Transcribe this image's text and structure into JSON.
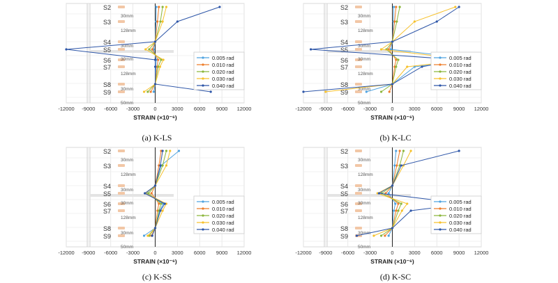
{
  "colors": {
    "0.005 rad": "#4fa3e0",
    "0.010 rad": "#ee7d2a",
    "0.020 rad": "#8cb63c",
    "0.030 rad": "#f6c12c",
    "0.040 rad": "#2e56a8"
  },
  "chart_data": [
    {
      "type": "line",
      "caption": "(a)  K-LS",
      "xlabel": "STRAIN (×10⁻⁶)",
      "xlim": [
        -12000,
        12000
      ],
      "xticks": [
        "-12000",
        "-9000",
        "-6000",
        "-3000",
        "0",
        "3000",
        "6000",
        "9000",
        "12000"
      ],
      "gauges": [
        "S2",
        "S3",
        "S4",
        "S5",
        "S6",
        "S7",
        "S8",
        "S9"
      ],
      "spacing_labels": [
        "30mm",
        "128mm",
        "30mm",
        "30mm",
        "128mm",
        "30mm",
        "50mm"
      ],
      "legend": [
        "0.005 rad",
        "0.010 rad",
        "0.020 rad",
        "0.030 rad",
        "0.040 rad"
      ],
      "series": [
        {
          "name": "0.005 rad",
          "x": [
            150,
            110,
            0,
            -200,
            150,
            100,
            0,
            -200
          ]
        },
        {
          "name": "0.010 rad",
          "x": [
            500,
            300,
            0,
            -400,
            400,
            250,
            0,
            -600
          ]
        },
        {
          "name": "0.020 rad",
          "x": [
            1000,
            700,
            0,
            -800,
            800,
            400,
            0,
            -1000
          ]
        },
        {
          "name": "0.030 rad",
          "x": [
            1500,
            1000,
            0,
            -1300,
            1100,
            650,
            0,
            -1500
          ]
        },
        {
          "name": "0.040 rad",
          "x": [
            8700,
            3000,
            0,
            -12000,
            0,
            0,
            0,
            7500
          ]
        }
      ]
    },
    {
      "type": "line",
      "caption": "(b)  K-LC",
      "xlabel": "STRAIN (×10⁻⁶)",
      "xlim": [
        -12000,
        12000
      ],
      "xticks": [
        "-12000",
        "-9000",
        "-6000",
        "-3000",
        "0",
        "3000",
        "6000",
        "9000",
        "12000"
      ],
      "gauges": [
        "S2",
        "S3",
        "S4",
        "S5",
        "S6",
        "S7",
        "S8",
        "S9"
      ],
      "spacing_labels": [
        "30mm",
        "128mm",
        "30mm",
        "30mm",
        "128mm",
        "30mm",
        "50mm"
      ],
      "legend": [
        "0.005 rad",
        "0.010 rad",
        "0.020 rad",
        "0.030 rad",
        "0.040 rad"
      ],
      "series": [
        {
          "name": "0.005 rad",
          "x": [
            200,
            150,
            0,
            -200,
            11800,
            3000,
            0,
            -3500
          ]
        },
        {
          "name": "0.010 rad",
          "x": [
            500,
            300,
            0,
            -500,
            500,
            300,
            0,
            -400
          ]
        },
        {
          "name": "0.020 rad",
          "x": [
            1000,
            600,
            0,
            -800,
            800,
            500,
            0,
            -1500
          ]
        },
        {
          "name": "0.030 rad",
          "x": [
            8500,
            3000,
            0,
            -1500,
            10300,
            2000,
            0,
            -9000
          ]
        },
        {
          "name": "0.040 rad",
          "x": [
            9000,
            6000,
            0,
            -11000,
            9000,
            4000,
            0,
            -12000
          ]
        }
      ]
    },
    {
      "type": "line",
      "caption": "(c)  K-SS",
      "xlabel": "STRAIN (×10⁻⁶)",
      "xlim": [
        -12000,
        12000
      ],
      "xticks": [
        "-12000",
        "-9000",
        "-6000",
        "-3000",
        "0",
        "3000",
        "6000",
        "9000",
        "12000"
      ],
      "gauges": [
        "S2",
        "S3",
        "S4",
        "S5",
        "S6",
        "S7",
        "S8",
        "S9"
      ],
      "spacing_labels": [
        "30mm",
        "128mm",
        "30mm",
        "30mm",
        "128mm",
        "30mm",
        "50mm"
      ],
      "legend": [
        "0.005 rad",
        "0.010 rad",
        "0.020 rad",
        "0.030 rad",
        "0.040 rad"
      ],
      "series": [
        {
          "name": "0.005 rad",
          "x": [
            3200,
            800,
            0,
            -1200,
            1100,
            600,
            0,
            -1500
          ]
        },
        {
          "name": "0.010 rad",
          "x": [
            800,
            500,
            0,
            -500,
            500,
            300,
            0,
            -500
          ]
        },
        {
          "name": "0.020 rad",
          "x": [
            1500,
            1000,
            0,
            -900,
            800,
            500,
            0,
            -800
          ]
        },
        {
          "name": "0.030 rad",
          "x": [
            2000,
            1500,
            0,
            -1300,
            1500,
            1000,
            0,
            -1000
          ]
        },
        {
          "name": "0.040 rad",
          "x": [
            1000,
            700,
            0,
            -1400,
            1300,
            700,
            0,
            -400
          ]
        }
      ]
    },
    {
      "type": "line",
      "caption": "(d)  K-SC",
      "xlabel": "STRAIN (×10⁻⁶)",
      "xlim": [
        -12000,
        12000
      ],
      "xticks": [
        "-12000",
        "-9000",
        "-6000",
        "-3000",
        "0",
        "3000",
        "6000",
        "9000",
        "12000"
      ],
      "gauges": [
        "S2",
        "S3",
        "S4",
        "S5",
        "S6",
        "S7",
        "S8",
        "S9"
      ],
      "spacing_labels": [
        "30mm",
        "128mm",
        "30mm",
        "30mm",
        "128mm",
        "30mm",
        "50mm"
      ],
      "legend": [
        "0.005 rad",
        "0.010 rad",
        "0.020 rad",
        "0.030 rad",
        "0.040 rad"
      ],
      "series": [
        {
          "name": "0.005 rad",
          "x": [
            500,
            300,
            0,
            -500,
            400,
            200,
            0,
            -500
          ]
        },
        {
          "name": "0.010 rad",
          "x": [
            1000,
            600,
            0,
            -900,
            800,
            500,
            0,
            -1000
          ]
        },
        {
          "name": "0.020 rad",
          "x": [
            1500,
            1000,
            0,
            -1400,
            1200,
            800,
            0,
            -1500
          ]
        },
        {
          "name": "0.030 rad",
          "x": [
            2500,
            1500,
            0,
            -2000,
            2000,
            1300,
            0,
            -2500
          ]
        },
        {
          "name": "0.040 rad",
          "x": [
            9000,
            1200,
            0,
            -1800,
            10000,
            2500,
            0,
            -4800
          ]
        }
      ]
    }
  ]
}
